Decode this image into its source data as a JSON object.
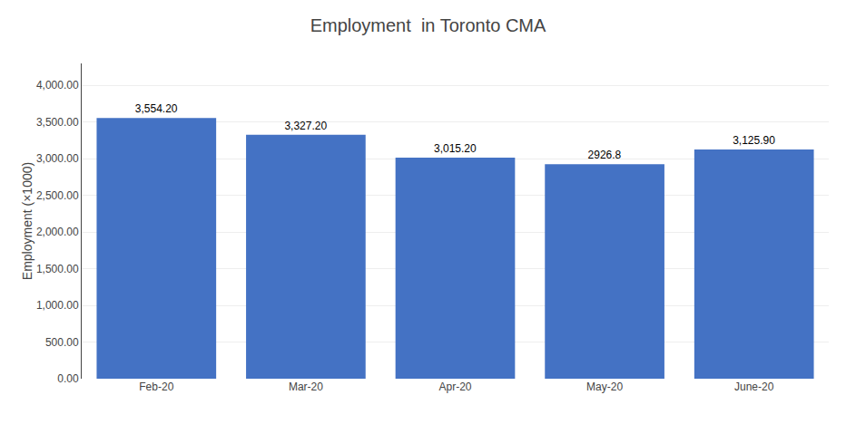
{
  "chart_data": {
    "type": "bar",
    "title": "Employment  in Toronto CMA",
    "categories": [
      "Feb-20",
      "Mar-20",
      "Apr-20",
      "May-20",
      "June-20"
    ],
    "values": [
      3554.2,
      3327.2,
      3015.2,
      2926.8,
      3125.9
    ],
    "value_labels": [
      "3,554.20",
      "3,327.20",
      "3,015.20",
      "2926.8",
      "3,125.90"
    ],
    "color": "#4472c4",
    "ylabel": "Employment (×1000)",
    "ylim": [
      0,
      4300
    ],
    "yticks": [
      {
        "value": 0,
        "label": "0.00"
      },
      {
        "value": 500,
        "label": "500.00"
      },
      {
        "value": 1000,
        "label": "1,000.00"
      },
      {
        "value": 1500,
        "label": "1,500.00"
      },
      {
        "value": 2000,
        "label": "2,000.00"
      },
      {
        "value": 2500,
        "label": "2,500.00"
      },
      {
        "value": 3000,
        "label": "3,000.00"
      },
      {
        "value": 3500,
        "label": "3,500.00"
      },
      {
        "value": 4000,
        "label": "4,000.00"
      }
    ],
    "grid": true,
    "data_labels": true
  }
}
